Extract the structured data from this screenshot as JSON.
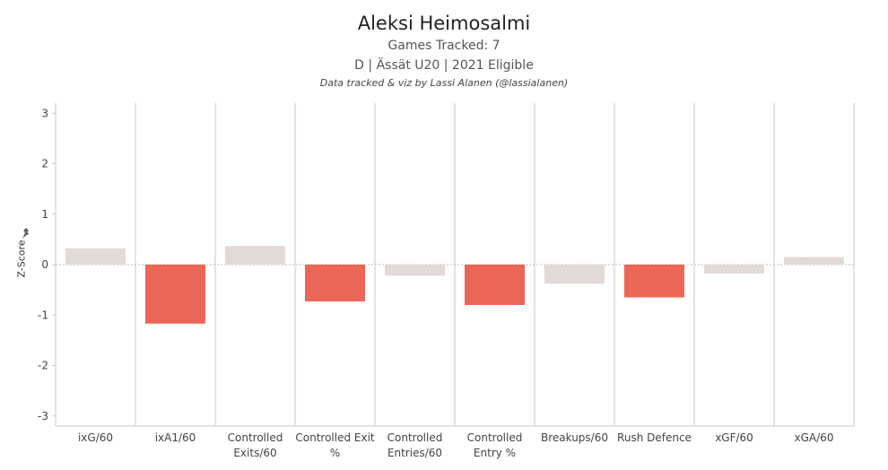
{
  "header": {
    "title": "Aleksi Heimosalmi",
    "games_tracked": "Games Tracked: 7",
    "info": "D | Ässät U20 | 2021 Eligible",
    "credit": "Data tracked & viz by Lassi Alanen (@lassialanen)"
  },
  "colors": {
    "negative_highlight": "#EC6657",
    "neutral": "#E2DAD8",
    "grid": "#C8C8C8"
  },
  "icons": {
    "pin": "pin-icon"
  },
  "chart_data": {
    "type": "bar",
    "ylabel": "Z-Score",
    "ylim": [
      -3.2,
      3.2
    ],
    "yticks": [
      3,
      2,
      1,
      0,
      -1,
      -2,
      -3
    ],
    "categories": [
      [
        "ixG/60"
      ],
      [
        "ixA1/60"
      ],
      [
        "Controlled",
        "Exits/60"
      ],
      [
        "Controlled Exit",
        "%"
      ],
      [
        "Controlled",
        "Entries/60"
      ],
      [
        "Controlled",
        "Entry %"
      ],
      [
        "Breakups/60"
      ],
      [
        "Rush Defence"
      ],
      [
        "xGF/60"
      ],
      [
        "xGA/60"
      ]
    ],
    "values": [
      0.32,
      -1.17,
      0.37,
      -0.73,
      -0.22,
      -0.8,
      -0.38,
      -0.65,
      -0.18,
      0.15
    ],
    "highlighted": [
      false,
      true,
      false,
      true,
      false,
      true,
      false,
      true,
      false,
      false
    ],
    "grid": true
  }
}
